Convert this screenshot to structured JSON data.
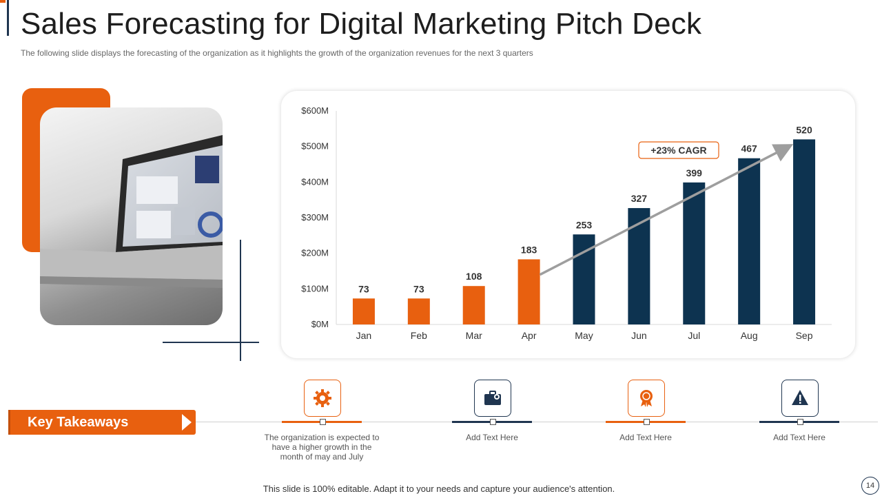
{
  "slide": {
    "title": "Sales Forecasting for Digital Marketing Pitch Deck",
    "subtitle": "The following  slide displays the forecasting  of the organization as it highlights  the growth  of the organization  revenues  for the next 3 quarters",
    "footer": "This slide is 100% editable. Adapt it to your needs and capture your audience's attention.",
    "page_number": "14"
  },
  "colors": {
    "orange": "#e8600f",
    "navy": "#0d3350",
    "accent_navy": "#1f3550"
  },
  "chart_data": {
    "type": "bar",
    "categories": [
      "Jan",
      "Feb",
      "Mar",
      "Apr",
      "May",
      "Jun",
      "Jul",
      "Aug",
      "Sep"
    ],
    "values": [
      73,
      73,
      108,
      183,
      253,
      327,
      399,
      467,
      520
    ],
    "data_labels": [
      "73",
      "73",
      "108",
      "183",
      "253",
      "327",
      "399",
      "467",
      "520"
    ],
    "bar_colors": [
      "#e8600f",
      "#e8600f",
      "#e8600f",
      "#e8600f",
      "#0d3350",
      "#0d3350",
      "#0d3350",
      "#0d3350",
      "#0d3350"
    ],
    "ylim": [
      0,
      600
    ],
    "yticks": [
      0,
      100,
      200,
      300,
      400,
      500,
      600
    ],
    "ytick_labels": [
      "$0M",
      "$100M",
      "$200M",
      "$300M",
      "$400M",
      "$500M",
      "$600M"
    ],
    "annotation": "+23% CAGR",
    "trend_arrow": {
      "from_category": "Apr",
      "from_value": 140,
      "to_category": "Sep",
      "to_value": 520
    },
    "xlabel": "",
    "ylabel": ""
  },
  "takeaways": {
    "label": "Key Takeaways",
    "items": [
      {
        "icon": "gear-icon",
        "text": "The organization is expected to have a higher growth in the month of may and July"
      },
      {
        "icon": "briefcase-icon",
        "text": "Add Text Here"
      },
      {
        "icon": "award-badge-icon",
        "text": "Add Text Here"
      },
      {
        "icon": "warning-icon",
        "text": "Add Text Here"
      }
    ]
  }
}
